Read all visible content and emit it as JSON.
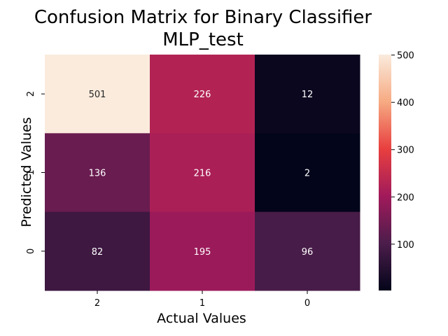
{
  "chart_data": {
    "type": "heatmap",
    "title": "Confusion Matrix for Binary Classifier",
    "subtitle": "MLP_test",
    "xlabel": "Actual Values",
    "ylabel": "Predicted Values",
    "x_categories": [
      "2",
      "1",
      "0"
    ],
    "y_categories": [
      "2",
      "1",
      "0"
    ],
    "values": [
      [
        501,
        226,
        12
      ],
      [
        136,
        216,
        2
      ],
      [
        82,
        195,
        96
      ]
    ],
    "colorbar": {
      "min": 2,
      "max": 501,
      "ticks": [
        100,
        200,
        300,
        400,
        500
      ],
      "colormap": "rocket",
      "stops": [
        "#03051a",
        "#4c1d4b",
        "#a11a5b",
        "#e83f3f",
        "#f6aa82",
        "#faebdd"
      ]
    },
    "grid": false,
    "legend": "colorbar-right"
  }
}
